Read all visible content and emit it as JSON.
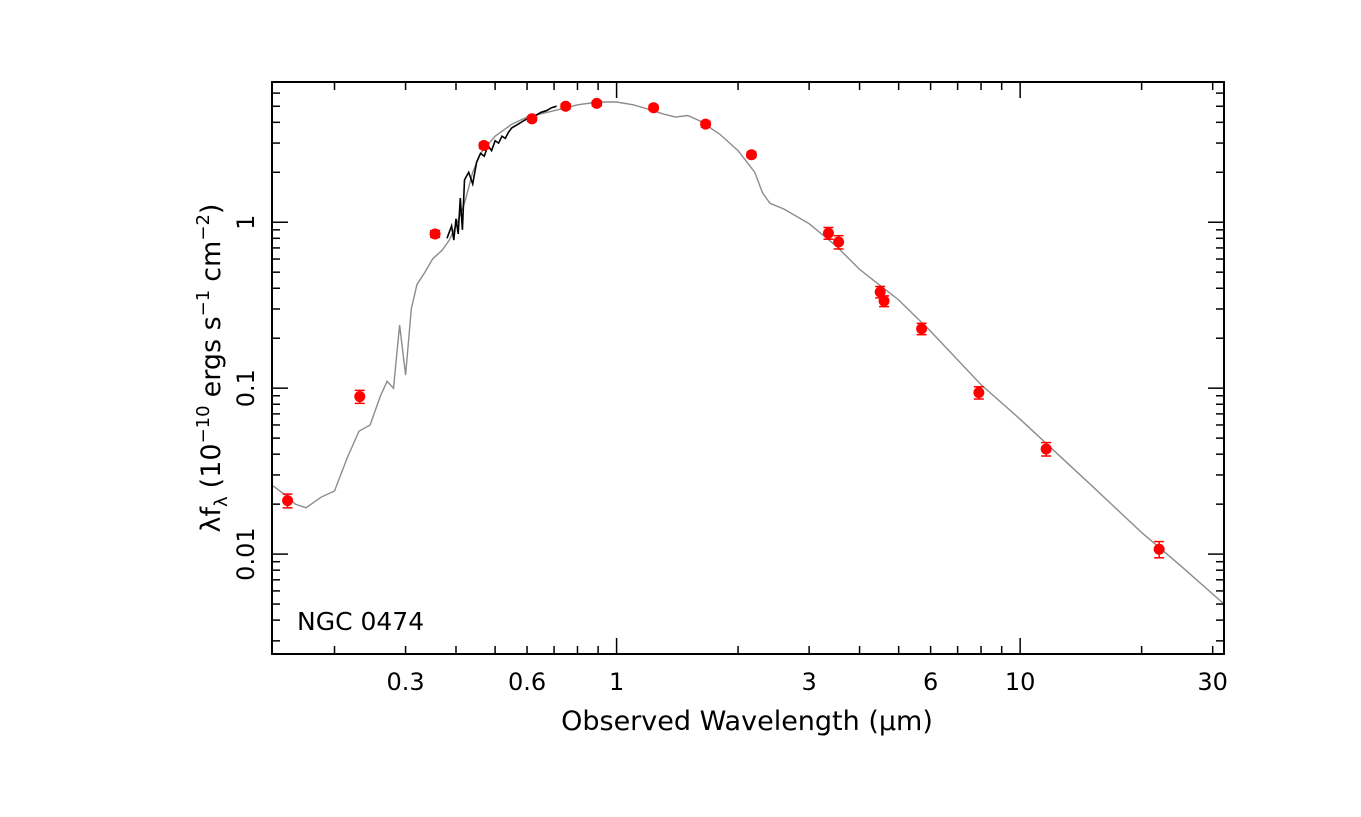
{
  "chart_data": {
    "type": "scatter",
    "label": "NGC 0474",
    "xlabel": "Observed Wavelength (μm)",
    "ylabel": {
      "base": "λf",
      "base_sub": "λ",
      "open": "(10",
      "exp1": "−10",
      "mid1": "ergs s",
      "exp2": "−1",
      "mid2": "cm",
      "exp3": "−2",
      "close": ")"
    },
    "xscale": "log",
    "yscale": "log",
    "xlim": [
      0.14,
      32
    ],
    "ylim": [
      0.0025,
      7
    ],
    "xticks": [
      {
        "value": 0.3,
        "label": "0.3"
      },
      {
        "value": 0.6,
        "label": "0.6"
      },
      {
        "value": 1,
        "label": "1"
      },
      {
        "value": 3,
        "label": "3"
      },
      {
        "value": 6,
        "label": "6"
      },
      {
        "value": 10,
        "label": "10"
      },
      {
        "value": 30,
        "label": "30"
      }
    ],
    "yticks": [
      {
        "value": 0.01,
        "label": "0.01"
      },
      {
        "value": 0.1,
        "label": "0.1"
      },
      {
        "value": 1,
        "label": "1"
      }
    ],
    "grid": false,
    "colors": {
      "points": "#ff0000",
      "model": "#8c8c8c",
      "spectrum": "#000000"
    },
    "series": [
      {
        "kind": "photometry",
        "points": [
          {
            "x": 0.153,
            "y": 0.021,
            "err": 0.002
          },
          {
            "x": 0.231,
            "y": 0.089,
            "err": 0.008
          },
          {
            "x": 0.355,
            "y": 0.85,
            "err": 0.04
          },
          {
            "x": 0.469,
            "y": 2.9,
            "err": 0.12
          },
          {
            "x": 0.617,
            "y": 4.2,
            "err": 0.15
          },
          {
            "x": 0.748,
            "y": 5.0,
            "err": 0.18
          },
          {
            "x": 0.893,
            "y": 5.2,
            "err": 0.18
          },
          {
            "x": 1.235,
            "y": 4.9,
            "err": 0.18
          },
          {
            "x": 1.662,
            "y": 3.9,
            "err": 0.15
          },
          {
            "x": 2.159,
            "y": 2.55,
            "err": 0.1
          },
          {
            "x": 3.35,
            "y": 0.86,
            "err": 0.07
          },
          {
            "x": 3.55,
            "y": 0.76,
            "err": 0.07
          },
          {
            "x": 4.5,
            "y": 0.38,
            "err": 0.03
          },
          {
            "x": 4.6,
            "y": 0.335,
            "err": 0.025
          },
          {
            "x": 5.7,
            "y": 0.228,
            "err": 0.018
          },
          {
            "x": 7.9,
            "y": 0.094,
            "err": 0.008
          },
          {
            "x": 11.6,
            "y": 0.043,
            "err": 0.004
          },
          {
            "x": 22.1,
            "y": 0.0107,
            "err": 0.0012
          }
        ]
      },
      {
        "kind": "model",
        "x": [
          0.14,
          0.15,
          0.16,
          0.17,
          0.185,
          0.2,
          0.215,
          0.23,
          0.245,
          0.26,
          0.27,
          0.28,
          0.29,
          0.3,
          0.31,
          0.32,
          0.335,
          0.35,
          0.37,
          0.385,
          0.4,
          0.42,
          0.44,
          0.46,
          0.5,
          0.55,
          0.6,
          0.65,
          0.7,
          0.75,
          0.8,
          0.9,
          1.0,
          1.1,
          1.2,
          1.3,
          1.4,
          1.5,
          1.6,
          1.8,
          2.0,
          2.2,
          2.3,
          2.4,
          2.6,
          3.0,
          3.5,
          4.0,
          5.0,
          6.0,
          8.0,
          10.0,
          15.0,
          20.0,
          25.0,
          32.0
        ],
        "y": [
          0.026,
          0.023,
          0.02,
          0.019,
          0.022,
          0.024,
          0.038,
          0.055,
          0.06,
          0.09,
          0.11,
          0.1,
          0.24,
          0.12,
          0.3,
          0.42,
          0.5,
          0.6,
          0.68,
          0.78,
          0.95,
          1.3,
          2.0,
          2.6,
          3.3,
          3.9,
          4.3,
          4.5,
          4.7,
          4.9,
          5.1,
          5.3,
          5.3,
          5.1,
          4.8,
          4.5,
          4.3,
          4.4,
          4.1,
          3.4,
          2.7,
          2.0,
          1.5,
          1.3,
          1.2,
          0.98,
          0.72,
          0.52,
          0.34,
          0.22,
          0.105,
          0.065,
          0.026,
          0.0135,
          0.0085,
          0.005
        ]
      },
      {
        "kind": "spectrum",
        "x": [
          0.38,
          0.39,
          0.395,
          0.4,
          0.405,
          0.41,
          0.415,
          0.42,
          0.43,
          0.44,
          0.45,
          0.46,
          0.47,
          0.48,
          0.49,
          0.5,
          0.51,
          0.52,
          0.53,
          0.54,
          0.55,
          0.57,
          0.59,
          0.61,
          0.63,
          0.65,
          0.67,
          0.69,
          0.71
        ],
        "y": [
          0.8,
          0.95,
          0.78,
          1.05,
          0.85,
          1.4,
          0.9,
          1.8,
          2.0,
          1.7,
          2.3,
          2.6,
          2.5,
          2.9,
          2.7,
          3.1,
          3.0,
          3.3,
          3.2,
          3.5,
          3.7,
          3.9,
          4.1,
          4.3,
          4.4,
          4.6,
          4.7,
          4.9,
          5.0
        ]
      }
    ]
  }
}
